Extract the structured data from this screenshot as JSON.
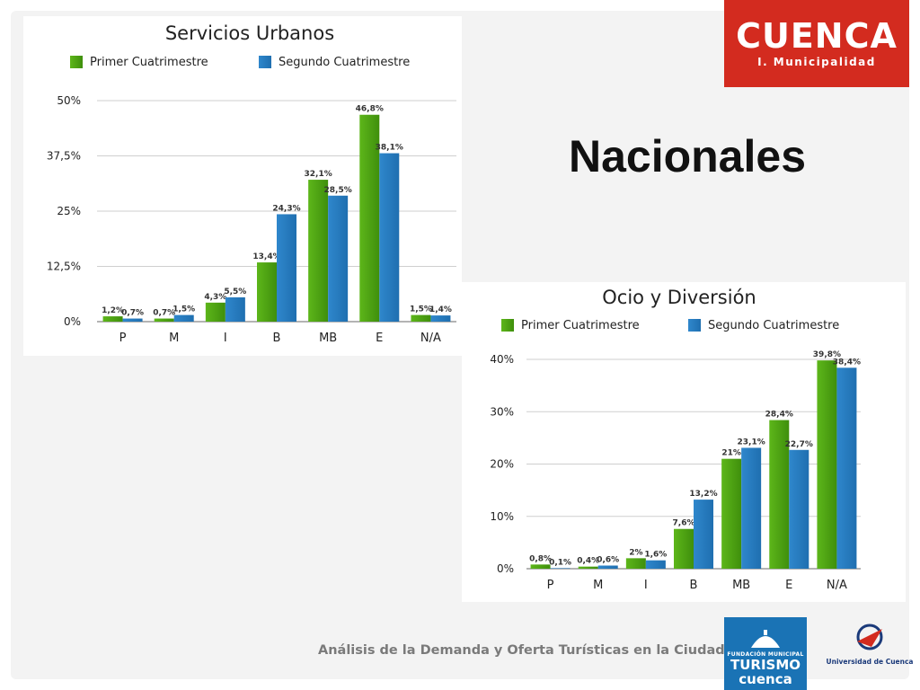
{
  "main_title": "Nacionales",
  "footer": "Análisis de la Demanda y Oferta Turísticas en la Ciudad de Cuenca",
  "logos": {
    "cuenca_word": "CUENCA",
    "cuenca_sub": "I. Municipalidad",
    "turismo_small": "FUNDACIÓN MUNICIPAL",
    "turismo_word": "TURISMO",
    "turismo_city": "cuenca",
    "university": "Universidad de Cuenca"
  },
  "colors": {
    "series1": "#5db61a",
    "series2": "#2f87cc",
    "brand_red": "#d32b1f",
    "brand_blue": "#1a73b5"
  },
  "chart_data": [
    {
      "type": "bar",
      "title": "Servicios Urbanos",
      "categories": [
        "P",
        "M",
        "I",
        "B",
        "MB",
        "E",
        "N/A"
      ],
      "series": [
        {
          "name": "Primer Cuatrimestre",
          "values": [
            1.2,
            0.7,
            4.3,
            13.4,
            32.1,
            46.8,
            1.5
          ],
          "labels": [
            "1,2%",
            "0,7%",
            "4,3%",
            "13,4%",
            "32,1%",
            "46,8%",
            "1,5%"
          ]
        },
        {
          "name": "Segundo Cuatrimestre",
          "values": [
            0.7,
            1.5,
            5.5,
            24.3,
            28.5,
            38.1,
            1.4
          ],
          "labels": [
            "0,7%",
            "1,5%",
            "5,5%",
            "24,3%",
            "28,5%",
            "38,1%",
            "1,4%"
          ]
        }
      ],
      "yticks": [
        0,
        12.5,
        25,
        37.5,
        50
      ],
      "ytick_labels": [
        "0%",
        "12,5%",
        "25%",
        "37,5%",
        "50%"
      ],
      "ylim": [
        0,
        50
      ],
      "legend": "top",
      "grid": true
    },
    {
      "type": "bar",
      "title": "Ocio y Diversión",
      "categories": [
        "P",
        "M",
        "I",
        "B",
        "MB",
        "E",
        "N/A"
      ],
      "series": [
        {
          "name": "Primer Cuatrimestre",
          "values": [
            0.8,
            0.4,
            2,
            7.6,
            21,
            28.4,
            39.8
          ],
          "labels": [
            "0,8%",
            "0,4%",
            "2%",
            "7,6%",
            "21%",
            "28,4%",
            "39,8%"
          ]
        },
        {
          "name": "Segundo Cuatrimestre",
          "values": [
            0.1,
            0.6,
            1.6,
            13.2,
            23.1,
            22.7,
            38.4
          ],
          "labels": [
            "0,1%",
            "0,6%",
            "1,6%",
            "13,2%",
            "23,1%",
            "22,7%",
            "38,4%"
          ]
        }
      ],
      "yticks": [
        0,
        10,
        20,
        30,
        40
      ],
      "ytick_labels": [
        "0%",
        "10%",
        "20%",
        "30%",
        "40%"
      ],
      "ylim": [
        0,
        40
      ],
      "legend": "top",
      "grid": true
    }
  ]
}
